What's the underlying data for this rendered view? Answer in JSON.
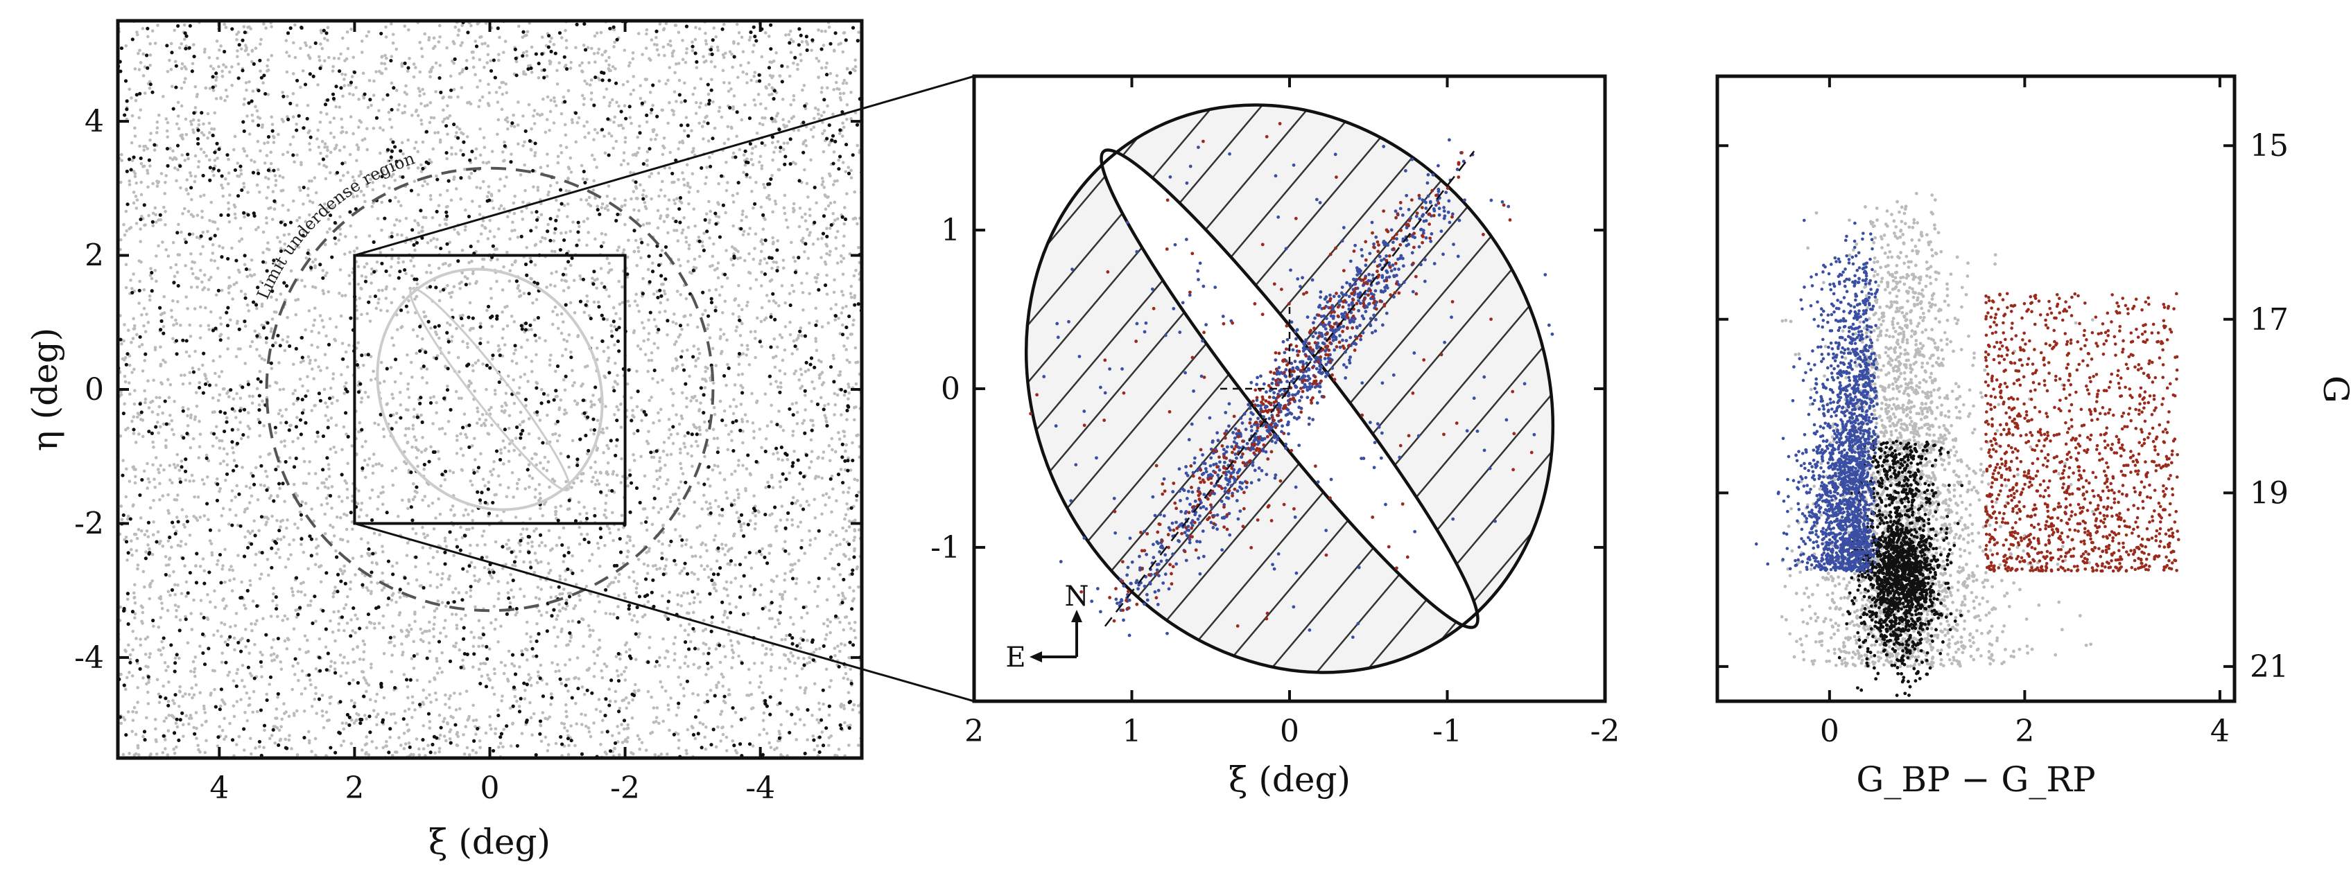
{
  "chart_data": [
    {
      "type": "scatter",
      "panel": "left",
      "xlabel": "ξ (deg)",
      "ylabel": "η (deg)",
      "xlim": [
        5.5,
        -5.5
      ],
      "ylim": [
        -5.5,
        5.5
      ],
      "x_ticks": [
        4,
        2,
        0,
        -2,
        -4
      ],
      "y_ticks": [
        4,
        2,
        0,
        -2,
        -4
      ],
      "x_tick_labels": [
        "4",
        "2",
        "0",
        "-2",
        "-4"
      ],
      "y_tick_labels": [
        "4",
        "2",
        "0",
        "-2",
        "-4"
      ],
      "annotation": "Limit underdense region",
      "annotation_radius_deg": 3.3,
      "zoom_box": {
        "xi": [
          2,
          -2
        ],
        "eta": [
          -2,
          2
        ]
      },
      "series": [
        {
          "color": "#bbbbbb",
          "approx_count": 6000
        },
        {
          "color": "#111111",
          "approx_count": 1400
        }
      ],
      "grid": false
    },
    {
      "type": "scatter",
      "panel": "middle",
      "xlabel": "ξ (deg)",
      "ylabel": "",
      "xlim": [
        2,
        -2
      ],
      "ylim": [
        -1.97,
        1.97
      ],
      "x_ticks": [
        2,
        1,
        0,
        -1,
        -2
      ],
      "y_ticks": [
        1,
        0,
        -1
      ],
      "x_tick_labels": [
        "2",
        "1",
        "0",
        "-1",
        "-2"
      ],
      "y_tick_labels": [
        "1",
        "0",
        "-1"
      ],
      "outer_ellipse": {
        "center": [
          0,
          0
        ],
        "semi_major_deg": 1.85,
        "semi_minor_deg": 1.6,
        "pa_deg": 30
      },
      "inner_ellipse": {
        "center": [
          0,
          0
        ],
        "semi_major_deg": 1.9,
        "semi_minor_deg": 0.25,
        "pa_deg": 38
      },
      "compass": {
        "north": "N",
        "east": "E"
      },
      "series": [
        {
          "color": "#3a4fa3",
          "approx_count": 1100
        },
        {
          "color": "#9a2a1c",
          "approx_count": 450
        }
      ],
      "grid": false
    },
    {
      "type": "scatter",
      "panel": "right",
      "xlabel": "G_BP − G_RP",
      "ylabel": "G",
      "xlim": [
        -1.15,
        4.15
      ],
      "ylim": [
        21.4,
        14.2
      ],
      "x_ticks": [
        0,
        2,
        4
      ],
      "y_ticks": [
        15,
        17,
        19,
        21
      ],
      "x_tick_labels": [
        "0",
        "2",
        "4"
      ],
      "y_tick_labels": [
        "15",
        "17",
        "19",
        "21"
      ],
      "series": [
        {
          "color": "#bbbbbb",
          "approx_count": 6000,
          "color_range": [
            -0.2,
            2.4
          ],
          "g_range": [
            15.5,
            21.0
          ]
        },
        {
          "color": "#111111",
          "approx_count": 4500,
          "color_range": [
            0.3,
            1.6
          ],
          "g_range": [
            18.5,
            21.2
          ]
        },
        {
          "color": "#3a4fa3",
          "approx_count": 2000,
          "color_range": [
            -0.5,
            0.5
          ],
          "g_range": [
            15.8,
            19.9
          ]
        },
        {
          "color": "#9a2a1c",
          "approx_count": 1300,
          "color_range": [
            1.6,
            3.8
          ],
          "g_range": [
            16.7,
            19.9
          ]
        }
      ],
      "grid": false
    }
  ]
}
